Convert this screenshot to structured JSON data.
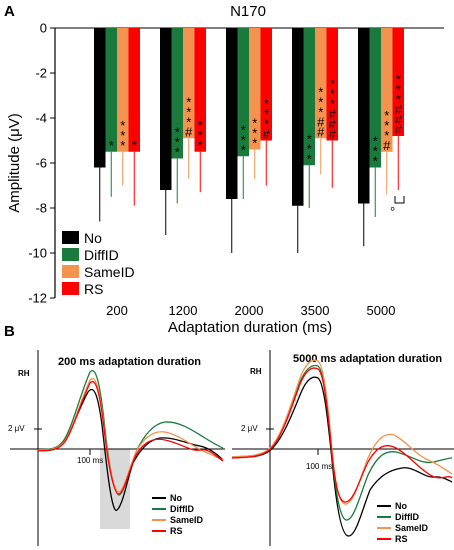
{
  "panel_a": {
    "letter": "A",
    "chart_data": {
      "type": "bar",
      "title": "N170",
      "xlabel": "Adaptation duration (ms)",
      "ylabel": "Amplitude (μV)",
      "categories": [
        "200",
        "1200",
        "2000",
        "3500",
        "5000"
      ],
      "ylim": [
        -12,
        0
      ],
      "yticks": [
        "0",
        "-2",
        "-4",
        "-6",
        "-8",
        "-10",
        "-12"
      ],
      "grid": false,
      "legend_position": "bottom-left",
      "series": [
        {
          "name": "No",
          "color": "#000000",
          "values": [
            -6.2,
            -7.2,
            -7.6,
            -7.9,
            -7.8
          ],
          "err": [
            2.4,
            2.0,
            2.4,
            2.1,
            1.9
          ]
        },
        {
          "name": "DiffID",
          "color": "#1a7a3c",
          "values": [
            -5.5,
            -5.8,
            -5.7,
            -6.1,
            -6.2
          ],
          "err": [
            2.0,
            2.0,
            1.9,
            1.9,
            2.2
          ]
        },
        {
          "name": "SameID",
          "color": "#f4924f",
          "values": [
            -5.5,
            -4.9,
            -5.4,
            -4.9,
            -5.5
          ],
          "err": [
            1.5,
            1.8,
            1.3,
            1.6,
            1.9
          ]
        },
        {
          "name": "RS",
          "color": "#ff0000",
          "values": [
            -5.5,
            -5.5,
            -5.0,
            -5.0,
            -4.8
          ],
          "err": [
            2.4,
            1.8,
            2.0,
            2.1,
            2.4
          ]
        }
      ],
      "annotations": [
        {
          "category": 0,
          "series": 1,
          "text": "*"
        },
        {
          "category": 0,
          "series": 2,
          "text": "***"
        },
        {
          "category": 0,
          "series": 3,
          "text": "*"
        },
        {
          "category": 1,
          "series": 1,
          "text": "***"
        },
        {
          "category": 1,
          "series": 2,
          "text": "***#"
        },
        {
          "category": 1,
          "series": 3,
          "text": "***"
        },
        {
          "category": 2,
          "series": 1,
          "text": "***"
        },
        {
          "category": 2,
          "series": 2,
          "text": "***"
        },
        {
          "category": 2,
          "series": 3,
          "text": "***#"
        },
        {
          "category": 3,
          "series": 1,
          "text": "***"
        },
        {
          "category": 3,
          "series": 2,
          "text": "***##"
        },
        {
          "category": 3,
          "series": 3,
          "text": "***###"
        },
        {
          "category": 4,
          "series": 1,
          "text": "***"
        },
        {
          "category": 4,
          "series": 2,
          "text": "***#"
        },
        {
          "category": 4,
          "series": 3,
          "text": "***###"
        }
      ],
      "bracket_mark": "°"
    }
  },
  "panel_b": {
    "letter": "B",
    "charts": [
      {
        "type": "line",
        "title": "200 ms adaptation duration",
        "channel": "RH",
        "scale_label": "2 μV",
        "time_label": "100 ms",
        "legend": [
          "No",
          "DiffID",
          "SameID",
          "RS"
        ],
        "legend_colors": [
          "#000000",
          "#1a7a3c",
          "#f4924f",
          "#ff0000"
        ],
        "highlight_window": true
      },
      {
        "type": "line",
        "title": "5000 ms adaptation duration",
        "channel": "RH",
        "scale_label": "2 μV",
        "time_label": "100 ms",
        "legend": [
          "No",
          "DiffID",
          "SameID",
          "RS"
        ],
        "legend_colors": [
          "#000000",
          "#1a7a3c",
          "#f4924f",
          "#ff0000"
        ],
        "highlight_window": false
      }
    ]
  }
}
